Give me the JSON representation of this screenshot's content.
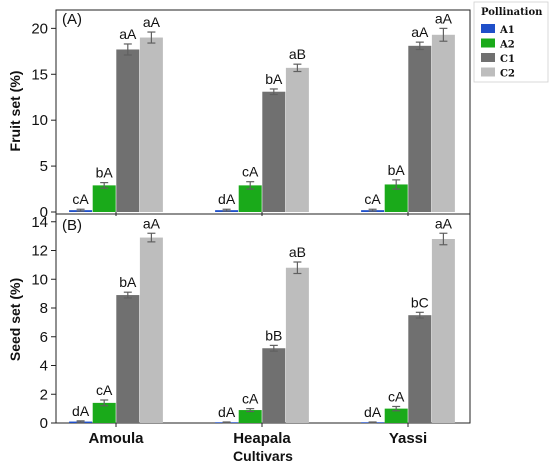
{
  "chart_data": [
    {
      "type": "bar",
      "panel_label": "(A)",
      "categories": [
        "Amoula",
        "Heapala",
        "Yassi"
      ],
      "ylabel": "Fruit set (%)",
      "xlabel": "",
      "ylim": [
        0,
        22
      ],
      "yticks": [
        0,
        5,
        10,
        15,
        20
      ],
      "grid": false,
      "series": [
        {
          "name": "A1",
          "values": [
            0.2,
            0.2,
            0.2
          ],
          "errors": [
            0.1,
            0.1,
            0.1
          ],
          "labels": [
            "cA",
            "dA",
            "cA"
          ]
        },
        {
          "name": "A2",
          "values": [
            2.9,
            2.9,
            3.0
          ],
          "errors": [
            0.3,
            0.4,
            0.5
          ],
          "labels": [
            "bA",
            "cA",
            "bA"
          ]
        },
        {
          "name": "C1",
          "values": [
            17.7,
            13.1,
            18.1
          ],
          "errors": [
            0.6,
            0.3,
            0.4
          ],
          "labels": [
            "aA",
            "bA",
            "aA"
          ]
        },
        {
          "name": "C2",
          "values": [
            19.0,
            15.7,
            19.3
          ],
          "errors": [
            0.6,
            0.4,
            0.7
          ],
          "labels": [
            "aA",
            "aB",
            "aA"
          ]
        }
      ]
    },
    {
      "type": "bar",
      "panel_label": "(B)",
      "categories": [
        "Amoula",
        "Heapala",
        "Yassi"
      ],
      "ylabel": "Seed set (%)",
      "xlabel": "Cultivars",
      "ylim": [
        0,
        14.4
      ],
      "yticks": [
        0,
        2,
        4,
        6,
        8,
        10,
        12,
        14
      ],
      "grid": false,
      "series": [
        {
          "name": "A1",
          "values": [
            0.1,
            0.05,
            0.05
          ],
          "errors": [
            0.05,
            0.02,
            0.02
          ],
          "labels": [
            "dA",
            "dA",
            "dA"
          ]
        },
        {
          "name": "A2",
          "values": [
            1.4,
            0.9,
            1.0
          ],
          "errors": [
            0.2,
            0.1,
            0.15
          ],
          "labels": [
            "cA",
            "cA",
            "cA"
          ]
        },
        {
          "name": "C1",
          "values": [
            8.9,
            5.2,
            7.5
          ],
          "errors": [
            0.2,
            0.2,
            0.2
          ],
          "labels": [
            "bA",
            "bB",
            "bC"
          ]
        },
        {
          "name": "C2",
          "values": [
            12.9,
            10.8,
            12.8
          ],
          "errors": [
            0.3,
            0.4,
            0.4
          ],
          "labels": [
            "aA",
            "aB",
            "aA"
          ]
        }
      ]
    }
  ],
  "legend": {
    "title": "Pollination",
    "placement": "top-right",
    "items": [
      {
        "label": "A1",
        "color": "#1f4fc9"
      },
      {
        "label": "A2",
        "color": "#1aaa1a"
      },
      {
        "label": "C1",
        "color": "#707070"
      },
      {
        "label": "C2",
        "color": "#bdbdbd"
      }
    ]
  },
  "colors": {
    "A1": "#1f4fc9",
    "A2": "#1aaa1a",
    "C1": "#707070",
    "C2": "#bdbdbd",
    "error_bar": "#606060",
    "axis": "#222222"
  }
}
